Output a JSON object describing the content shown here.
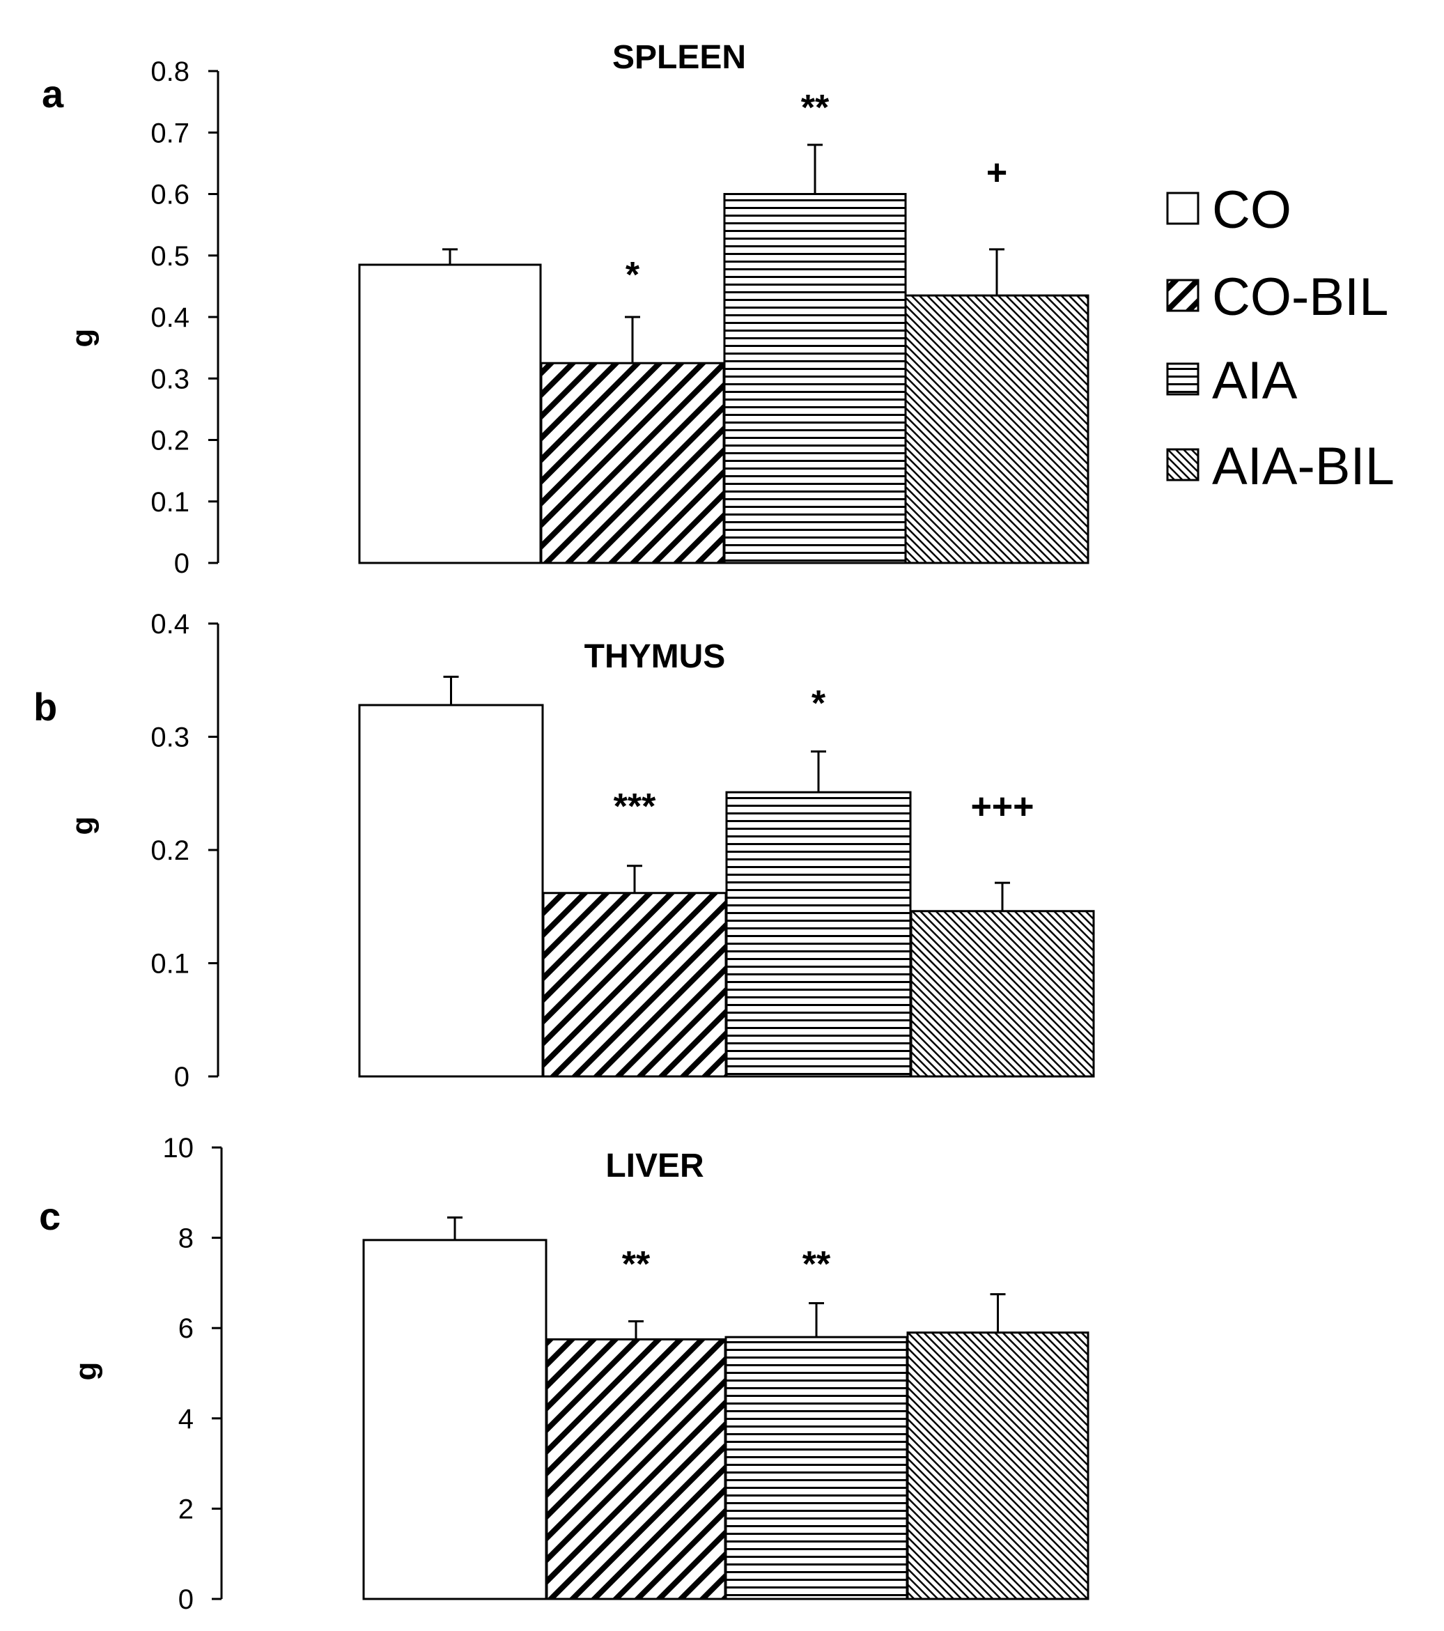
{
  "legend": {
    "entries": [
      {
        "label": "CO",
        "pattern": "white"
      },
      {
        "label": "CO-BIL",
        "pattern": "diag-wide"
      },
      {
        "label": "AIA",
        "pattern": "horizontal"
      },
      {
        "label": "AIA-BIL",
        "pattern": "diag-fine"
      }
    ]
  },
  "colors": {
    "ink": "#000000",
    "background": "#ffffff"
  },
  "chart_data": [
    {
      "type": "bar",
      "panel": "a",
      "title": "SPLEEN",
      "ylabel": "g",
      "xlabel": "",
      "categories": [
        "CO",
        "CO-BIL",
        "AIA",
        "AIA-BIL"
      ],
      "values": [
        0.485,
        0.325,
        0.6,
        0.435
      ],
      "errors": [
        0.025,
        0.075,
        0.08,
        0.075
      ],
      "annotations": [
        "",
        "*",
        "**",
        "+"
      ],
      "ylim": [
        0,
        0.8
      ],
      "yticks": [
        "0",
        "0.1",
        "0.2",
        "0.3",
        "0.4",
        "0.5",
        "0.6",
        "0.7",
        "0.8"
      ],
      "grid": false
    },
    {
      "type": "bar",
      "panel": "b",
      "title": "THYMUS",
      "ylabel": "g",
      "xlabel": "",
      "categories": [
        "CO",
        "CO-BIL",
        "AIA",
        "AIA-BIL"
      ],
      "values": [
        0.328,
        0.162,
        0.251,
        0.146
      ],
      "errors": [
        0.025,
        0.024,
        0.036,
        0.025
      ],
      "annotations": [
        "",
        "***",
        "*",
        "+++"
      ],
      "ylim": [
        0,
        0.4
      ],
      "yticks": [
        "0",
        "0.1",
        "0.2",
        "0.3",
        "0.4"
      ],
      "grid": false
    },
    {
      "type": "bar",
      "panel": "c",
      "title": "LIVER",
      "ylabel": "g",
      "xlabel": "",
      "categories": [
        "CO",
        "CO-BIL",
        "AIA",
        "AIA-BIL"
      ],
      "values": [
        7.95,
        5.75,
        5.8,
        5.9
      ],
      "errors": [
        0.5,
        0.4,
        0.75,
        0.85
      ],
      "annotations": [
        "",
        "**",
        "**",
        ""
      ],
      "ylim": [
        0,
        10
      ],
      "yticks": [
        "0",
        "2",
        "4",
        "6",
        "8",
        "10"
      ],
      "grid": false
    }
  ]
}
